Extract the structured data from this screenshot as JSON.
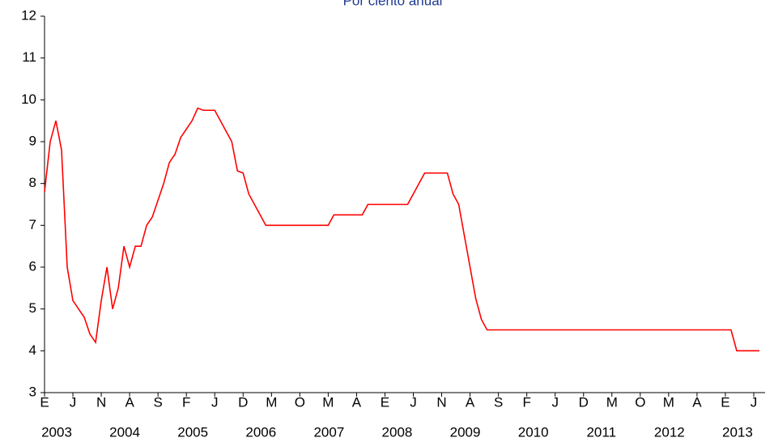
{
  "chart_data": {
    "type": "line",
    "title": "Por ciento anual",
    "x": [
      "2003-01",
      "2003-02",
      "2003-03",
      "2003-04",
      "2003-05",
      "2003-06",
      "2003-07",
      "2003-08",
      "2003-09",
      "2003-10",
      "2003-11",
      "2003-12",
      "2004-01",
      "2004-02",
      "2004-03",
      "2004-04",
      "2004-05",
      "2004-06",
      "2004-07",
      "2004-08",
      "2004-09",
      "2004-10",
      "2004-11",
      "2004-12",
      "2005-01",
      "2005-02",
      "2005-03",
      "2005-04",
      "2005-05",
      "2005-06",
      "2005-07",
      "2005-08",
      "2005-09",
      "2005-10",
      "2005-11",
      "2005-12",
      "2006-01",
      "2006-02",
      "2006-03",
      "2006-04",
      "2006-05",
      "2006-06",
      "2006-07",
      "2006-08",
      "2006-09",
      "2006-10",
      "2006-11",
      "2006-12",
      "2007-01",
      "2007-02",
      "2007-03",
      "2007-04",
      "2007-05",
      "2007-06",
      "2007-07",
      "2007-08",
      "2007-09",
      "2007-10",
      "2007-11",
      "2007-12",
      "2008-01",
      "2008-02",
      "2008-03",
      "2008-04",
      "2008-05",
      "2008-06",
      "2008-07",
      "2008-08",
      "2008-09",
      "2008-10",
      "2008-11",
      "2008-12",
      "2009-01",
      "2009-02",
      "2009-03",
      "2009-04",
      "2009-05",
      "2009-06",
      "2009-07",
      "2009-08",
      "2009-09",
      "2009-10",
      "2009-11",
      "2009-12",
      "2010-01",
      "2010-02",
      "2010-03",
      "2010-04",
      "2010-05",
      "2010-06",
      "2010-07",
      "2010-08",
      "2010-09",
      "2010-10",
      "2010-11",
      "2010-12",
      "2011-01",
      "2011-02",
      "2011-03",
      "2011-04",
      "2011-05",
      "2011-06",
      "2011-07",
      "2011-08",
      "2011-09",
      "2011-10",
      "2011-11",
      "2011-12",
      "2012-01",
      "2012-02",
      "2012-03",
      "2012-04",
      "2012-05",
      "2012-06",
      "2012-07",
      "2012-08",
      "2012-09",
      "2012-10",
      "2012-11",
      "2012-12",
      "2013-01",
      "2013-02",
      "2013-03",
      "2013-04",
      "2013-05",
      "2013-06",
      "2013-07"
    ],
    "series": [
      {
        "color": "#ff0000",
        "values": [
          7.8,
          9.0,
          9.5,
          8.8,
          6.0,
          5.2,
          5.0,
          4.8,
          4.4,
          4.2,
          5.2,
          6.0,
          5.0,
          5.5,
          6.5,
          6.0,
          6.5,
          6.5,
          7.0,
          7.2,
          7.6,
          8.0,
          8.5,
          8.7,
          9.1,
          9.3,
          9.5,
          9.8,
          9.75,
          9.75,
          9.75,
          9.5,
          9.25,
          9.0,
          8.3,
          8.25,
          7.75,
          7.5,
          7.25,
          7.0,
          7.0,
          7.0,
          7.0,
          7.0,
          7.0,
          7.0,
          7.0,
          7.0,
          7.0,
          7.0,
          7.0,
          7.25,
          7.25,
          7.25,
          7.25,
          7.25,
          7.25,
          7.5,
          7.5,
          7.5,
          7.5,
          7.5,
          7.5,
          7.5,
          7.5,
          7.75,
          8.0,
          8.25,
          8.25,
          8.25,
          8.25,
          8.25,
          7.75,
          7.5,
          6.75,
          6.0,
          5.25,
          4.75,
          4.5,
          4.5,
          4.5,
          4.5,
          4.5,
          4.5,
          4.5,
          4.5,
          4.5,
          4.5,
          4.5,
          4.5,
          4.5,
          4.5,
          4.5,
          4.5,
          4.5,
          4.5,
          4.5,
          4.5,
          4.5,
          4.5,
          4.5,
          4.5,
          4.5,
          4.5,
          4.5,
          4.5,
          4.5,
          4.5,
          4.5,
          4.5,
          4.5,
          4.5,
          4.5,
          4.5,
          4.5,
          4.5,
          4.5,
          4.5,
          4.5,
          4.5,
          4.5,
          4.5,
          4.0,
          4.0,
          4.0,
          4.0,
          4.0
        ]
      }
    ],
    "xlim": [
      "2003-01",
      "2013-08"
    ],
    "xticks": [
      {
        "value": "2003-01",
        "label": "E"
      },
      {
        "value": "2003-06",
        "label": "J"
      },
      {
        "value": "2003-11",
        "label": "N"
      },
      {
        "value": "2004-04",
        "label": "A"
      },
      {
        "value": "2004-09",
        "label": "S"
      },
      {
        "value": "2005-02",
        "label": "F"
      },
      {
        "value": "2005-07",
        "label": "J"
      },
      {
        "value": "2005-12",
        "label": "D"
      },
      {
        "value": "2006-05",
        "label": "M"
      },
      {
        "value": "2006-10",
        "label": "O"
      },
      {
        "value": "2007-03",
        "label": "M"
      },
      {
        "value": "2007-08",
        "label": "A"
      },
      {
        "value": "2008-01",
        "label": "E"
      },
      {
        "value": "2008-06",
        "label": "J"
      },
      {
        "value": "2008-11",
        "label": "N"
      },
      {
        "value": "2009-04",
        "label": "A"
      },
      {
        "value": "2009-09",
        "label": "S"
      },
      {
        "value": "2010-02",
        "label": "F"
      },
      {
        "value": "2010-07",
        "label": "J"
      },
      {
        "value": "2010-12",
        "label": "D"
      },
      {
        "value": "2011-05",
        "label": "M"
      },
      {
        "value": "2011-10",
        "label": "O"
      },
      {
        "value": "2012-03",
        "label": "M"
      },
      {
        "value": "2012-08",
        "label": "A"
      },
      {
        "value": "2013-01",
        "label": "E"
      },
      {
        "value": "2013-06",
        "label": "J"
      }
    ],
    "year_labels": [
      "2003",
      "2004",
      "2005",
      "2006",
      "2007",
      "2008",
      "2009",
      "2010",
      "2011",
      "2012",
      "2013"
    ],
    "ylim": [
      3,
      12
    ],
    "yticks": [
      3,
      4,
      5,
      6,
      7,
      8,
      9,
      10,
      11,
      12
    ]
  }
}
